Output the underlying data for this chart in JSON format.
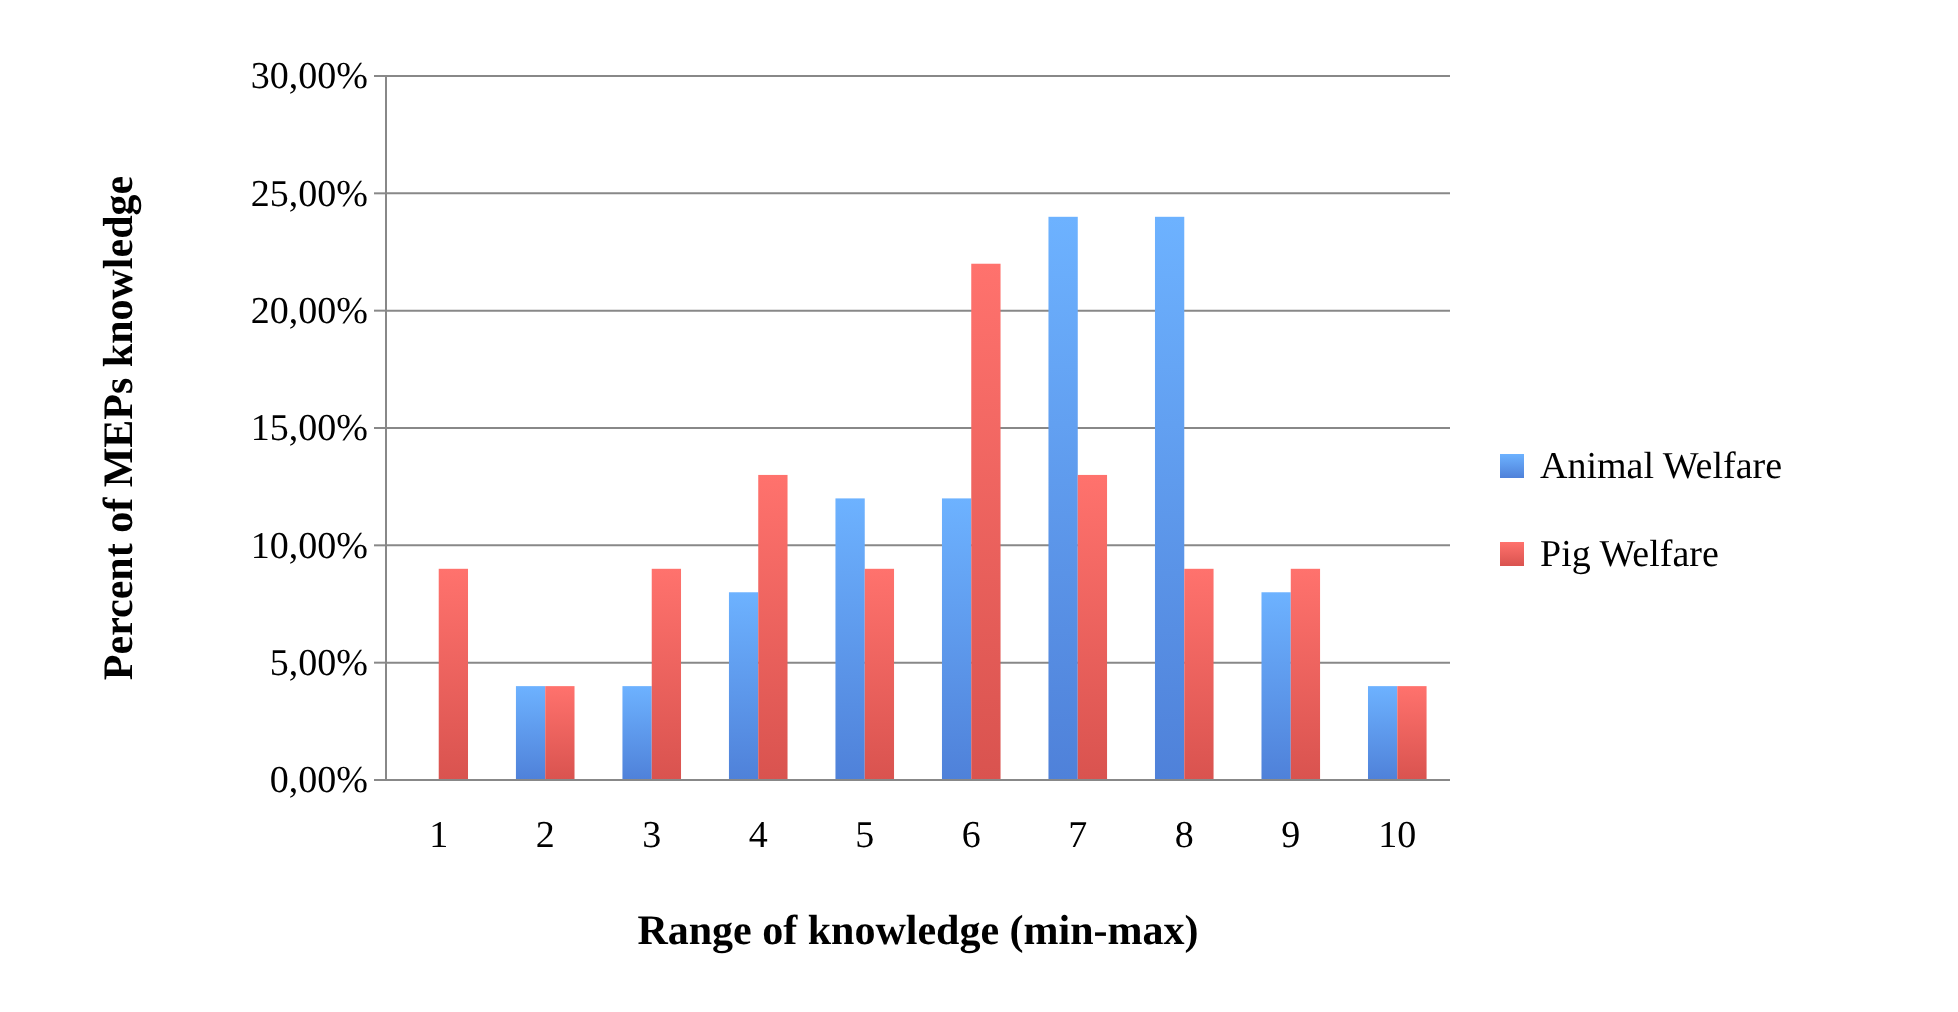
{
  "chart_data": {
    "type": "bar",
    "xlabel": "Range of knowledge (min-max)",
    "ylabel": "Percent of MEPs knowledge",
    "categories": [
      "1",
      "2",
      "3",
      "4",
      "5",
      "6",
      "7",
      "8",
      "9",
      "10"
    ],
    "series": [
      {
        "name": "Animal Welfare",
        "color": "#4f81d9",
        "values": [
          0,
          4,
          4,
          8,
          12,
          12,
          24,
          24,
          8,
          4
        ]
      },
      {
        "name": "Pig Welfare",
        "color": "#d9534f",
        "values": [
          9,
          4,
          9,
          13,
          9,
          22,
          13,
          9,
          9,
          4
        ]
      }
    ],
    "ylim": [
      0,
      30
    ],
    "yticks": [
      {
        "value": 0,
        "label": "0,00%"
      },
      {
        "value": 5,
        "label": "5,00%"
      },
      {
        "value": 10,
        "label": "10,00%"
      },
      {
        "value": 15,
        "label": "15,00%"
      },
      {
        "value": 20,
        "label": "20,00%"
      },
      {
        "value": 25,
        "label": "25,00%"
      },
      {
        "value": 30,
        "label": "30,00%"
      }
    ],
    "grid": "y",
    "legend": "right"
  }
}
